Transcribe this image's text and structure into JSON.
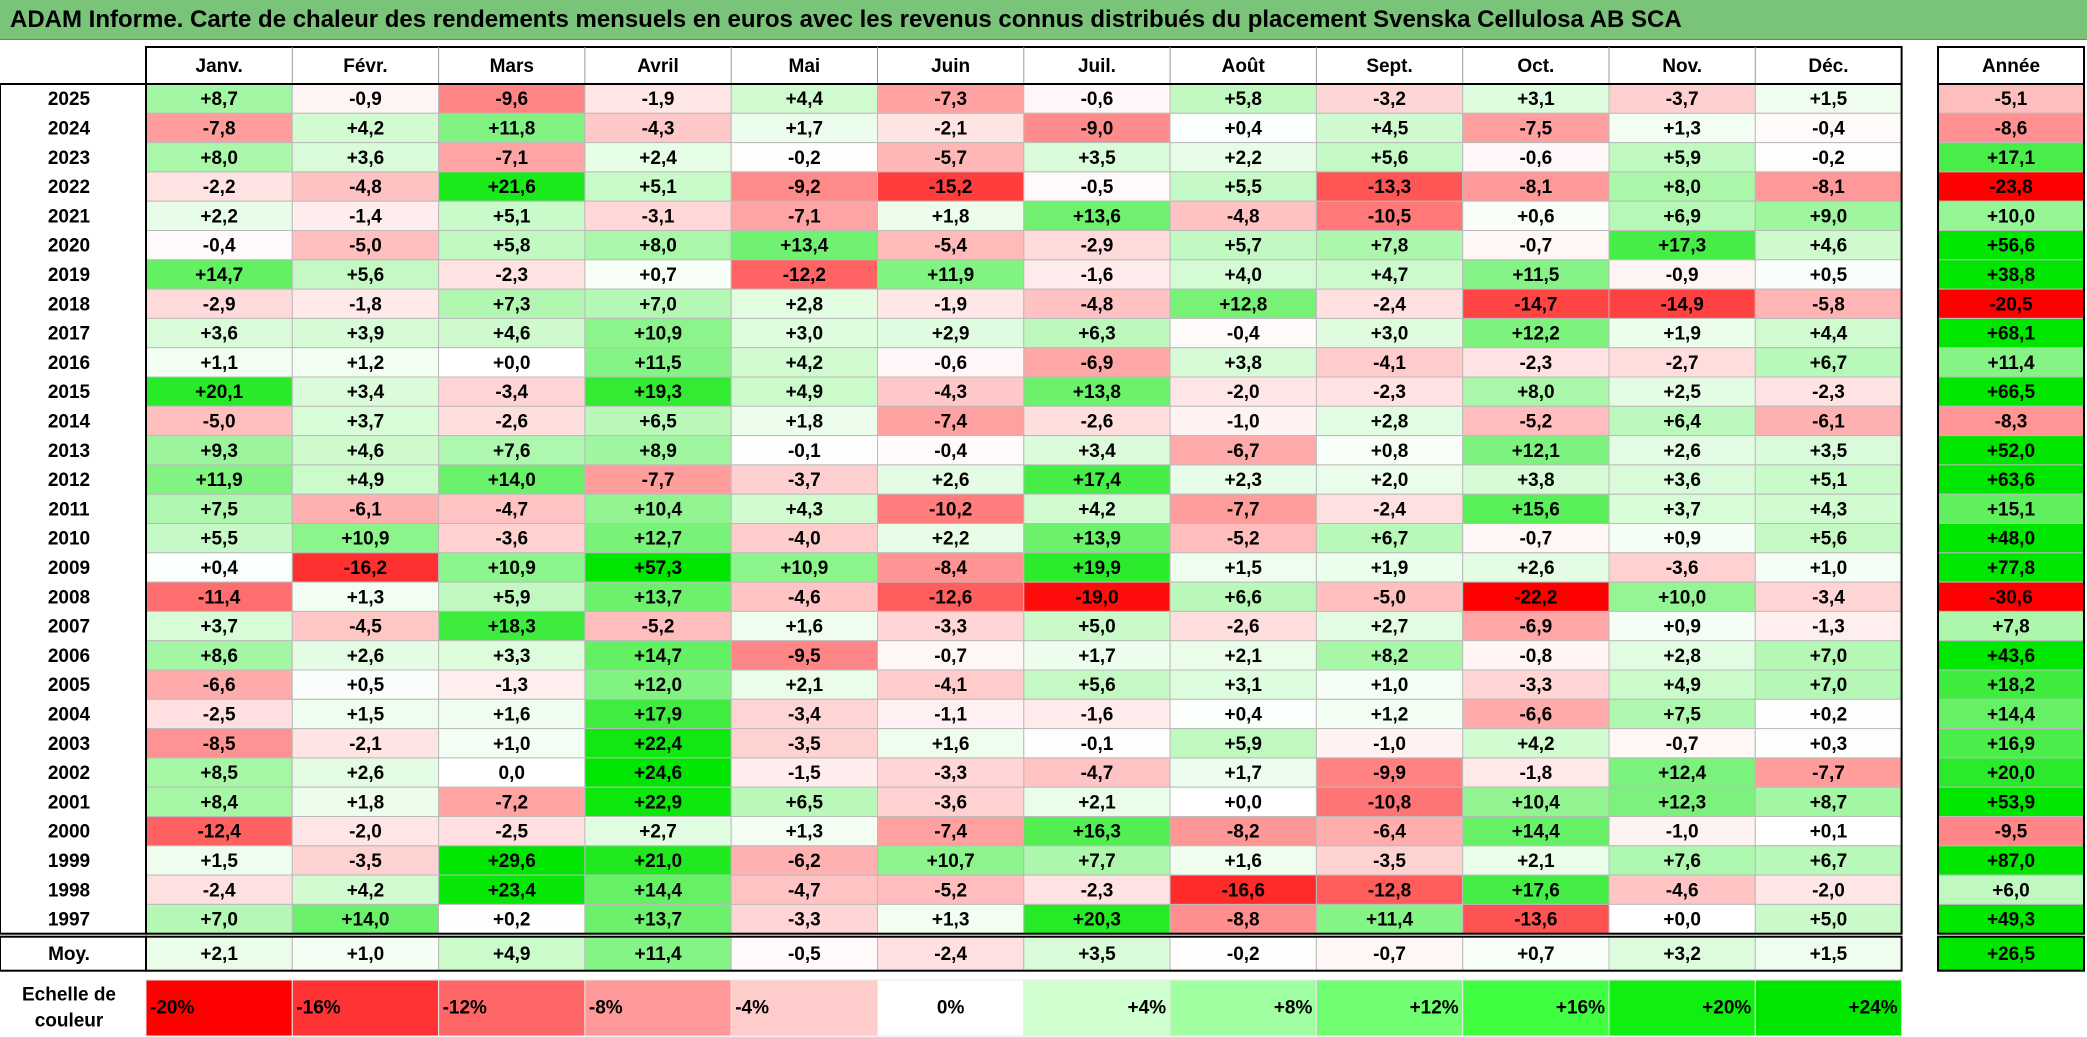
{
  "title": "ADAM Informe. Carte de chaleur des rendements mensuels en euros avec les revenus connus distribués du placement Svenska Cellulosa AB SCA",
  "chart_data": {
    "type": "heatmap",
    "title": "ADAM Informe. Carte de chaleur des rendements mensuels en euros avec les revenus connus distribués du placement Svenska Cellulosa AB SCA",
    "columns": [
      "Janv.",
      "Févr.",
      "Mars",
      "Avril",
      "Mai",
      "Juin",
      "Juil.",
      "Août",
      "Sept.",
      "Oct.",
      "Nov.",
      "Déc."
    ],
    "year_column_label": "Année",
    "rows": [
      {
        "year": "2025",
        "values": [
          "+8,7",
          "-0,9",
          "-9,6",
          "-1,9",
          "+4,4",
          "-7,3",
          "-0,6",
          "+5,8",
          "-3,2",
          "+3,1",
          "-3,7",
          "+1,5"
        ],
        "annual": "-5,1"
      },
      {
        "year": "2024",
        "values": [
          "-7,8",
          "+4,2",
          "+11,8",
          "-4,3",
          "+1,7",
          "-2,1",
          "-9,0",
          "+0,4",
          "+4,5",
          "-7,5",
          "+1,3",
          "-0,4"
        ],
        "annual": "-8,6"
      },
      {
        "year": "2023",
        "values": [
          "+8,0",
          "+3,6",
          "-7,1",
          "+2,4",
          "-0,2",
          "-5,7",
          "+3,5",
          "+2,2",
          "+5,6",
          "-0,6",
          "+5,9",
          "-0,2"
        ],
        "annual": "+17,1"
      },
      {
        "year": "2022",
        "values": [
          "-2,2",
          "-4,8",
          "+21,6",
          "+5,1",
          "-9,2",
          "-15,2",
          "-0,5",
          "+5,5",
          "-13,3",
          "-8,1",
          "+8,0",
          "-8,1"
        ],
        "annual": "-23,8"
      },
      {
        "year": "2021",
        "values": [
          "+2,2",
          "-1,4",
          "+5,1",
          "-3,1",
          "-7,1",
          "+1,8",
          "+13,6",
          "-4,8",
          "-10,5",
          "+0,6",
          "+6,9",
          "+9,0"
        ],
        "annual": "+10,0"
      },
      {
        "year": "2020",
        "values": [
          "-0,4",
          "-5,0",
          "+5,8",
          "+8,0",
          "+13,4",
          "-5,4",
          "-2,9",
          "+5,7",
          "+7,8",
          "-0,7",
          "+17,3",
          "+4,6"
        ],
        "annual": "+56,6"
      },
      {
        "year": "2019",
        "values": [
          "+14,7",
          "+5,6",
          "-2,3",
          "+0,7",
          "-12,2",
          "+11,9",
          "-1,6",
          "+4,0",
          "+4,7",
          "+11,5",
          "-0,9",
          "+0,5"
        ],
        "annual": "+38,8"
      },
      {
        "year": "2018",
        "values": [
          "-2,9",
          "-1,8",
          "+7,3",
          "+7,0",
          "+2,8",
          "-1,9",
          "-4,8",
          "+12,8",
          "-2,4",
          "-14,7",
          "-14,9",
          "-5,8"
        ],
        "annual": "-20,5"
      },
      {
        "year": "2017",
        "values": [
          "+3,6",
          "+3,9",
          "+4,6",
          "+10,9",
          "+3,0",
          "+2,9",
          "+6,3",
          "-0,4",
          "+3,0",
          "+12,2",
          "+1,9",
          "+4,4"
        ],
        "annual": "+68,1"
      },
      {
        "year": "2016",
        "values": [
          "+1,1",
          "+1,2",
          "+0,0",
          "+11,5",
          "+4,2",
          "-0,6",
          "-6,9",
          "+3,8",
          "-4,1",
          "-2,3",
          "-2,7",
          "+6,7"
        ],
        "annual": "+11,4"
      },
      {
        "year": "2015",
        "values": [
          "+20,1",
          "+3,4",
          "-3,4",
          "+19,3",
          "+4,9",
          "-4,3",
          "+13,8",
          "-2,0",
          "-2,3",
          "+8,0",
          "+2,5",
          "-2,3"
        ],
        "annual": "+66,5"
      },
      {
        "year": "2014",
        "values": [
          "-5,0",
          "+3,7",
          "-2,6",
          "+6,5",
          "+1,8",
          "-7,4",
          "-2,6",
          "-1,0",
          "+2,8",
          "-5,2",
          "+6,4",
          "-6,1"
        ],
        "annual": "-8,3"
      },
      {
        "year": "2013",
        "values": [
          "+9,3",
          "+4,6",
          "+7,6",
          "+8,9",
          "-0,1",
          "-0,4",
          "+3,4",
          "-6,7",
          "+0,8",
          "+12,1",
          "+2,6",
          "+3,5"
        ],
        "annual": "+52,0"
      },
      {
        "year": "2012",
        "values": [
          "+11,9",
          "+4,9",
          "+14,0",
          "-7,7",
          "-3,7",
          "+2,6",
          "+17,4",
          "+2,3",
          "+2,0",
          "+3,8",
          "+3,6",
          "+5,1"
        ],
        "annual": "+63,6"
      },
      {
        "year": "2011",
        "values": [
          "+7,5",
          "-6,1",
          "-4,7",
          "+10,4",
          "+4,3",
          "-10,2",
          "+4,2",
          "-7,7",
          "-2,4",
          "+15,6",
          "+3,7",
          "+4,3"
        ],
        "annual": "+15,1"
      },
      {
        "year": "2010",
        "values": [
          "+5,5",
          "+10,9",
          "-3,6",
          "+12,7",
          "-4,0",
          "+2,2",
          "+13,9",
          "-5,2",
          "+6,7",
          "-0,7",
          "+0,9",
          "+5,6"
        ],
        "annual": "+48,0"
      },
      {
        "year": "2009",
        "values": [
          "+0,4",
          "-16,2",
          "+10,9",
          "+57,3",
          "+10,9",
          "-8,4",
          "+19,9",
          "+1,5",
          "+1,9",
          "+2,6",
          "-3,6",
          "+1,0"
        ],
        "annual": "+77,8"
      },
      {
        "year": "2008",
        "values": [
          "-11,4",
          "+1,3",
          "+5,9",
          "+13,7",
          "-4,6",
          "-12,6",
          "-19,0",
          "+6,6",
          "-5,0",
          "-22,2",
          "+10,0",
          "-3,4"
        ],
        "annual": "-30,6"
      },
      {
        "year": "2007",
        "values": [
          "+3,7",
          "-4,5",
          "+18,3",
          "-5,2",
          "+1,6",
          "-3,3",
          "+5,0",
          "-2,6",
          "+2,7",
          "-6,9",
          "+0,9",
          "-1,3"
        ],
        "annual": "+7,8"
      },
      {
        "year": "2006",
        "values": [
          "+8,6",
          "+2,6",
          "+3,3",
          "+14,7",
          "-9,5",
          "-0,7",
          "+1,7",
          "+2,1",
          "+8,2",
          "-0,8",
          "+2,8",
          "+7,0"
        ],
        "annual": "+43,6"
      },
      {
        "year": "2005",
        "values": [
          "-6,6",
          "+0,5",
          "-1,3",
          "+12,0",
          "+2,1",
          "-4,1",
          "+5,6",
          "+3,1",
          "+1,0",
          "-3,3",
          "+4,9",
          "+7,0"
        ],
        "annual": "+18,2"
      },
      {
        "year": "2004",
        "values": [
          "-2,5",
          "+1,5",
          "+1,6",
          "+17,9",
          "-3,4",
          "-1,1",
          "-1,6",
          "+0,4",
          "+1,2",
          "-6,6",
          "+7,5",
          "+0,2"
        ],
        "annual": "+14,4"
      },
      {
        "year": "2003",
        "values": [
          "-8,5",
          "-2,1",
          "+1,0",
          "+22,4",
          "-3,5",
          "+1,6",
          "-0,1",
          "+5,9",
          "-1,0",
          "+4,2",
          "-0,7",
          "+0,3"
        ],
        "annual": "+16,9"
      },
      {
        "year": "2002",
        "values": [
          "+8,5",
          "+2,6",
          "0,0",
          "+24,6",
          "-1,5",
          "-3,3",
          "-4,7",
          "+1,7",
          "-9,9",
          "-1,8",
          "+12,4",
          "-7,7"
        ],
        "annual": "+20,0"
      },
      {
        "year": "2001",
        "values": [
          "+8,4",
          "+1,8",
          "-7,2",
          "+22,9",
          "+6,5",
          "-3,6",
          "+2,1",
          "+0,0",
          "-10,8",
          "+10,4",
          "+12,3",
          "+8,7"
        ],
        "annual": "+53,9"
      },
      {
        "year": "2000",
        "values": [
          "-12,4",
          "-2,0",
          "-2,5",
          "+2,7",
          "+1,3",
          "-7,4",
          "+16,3",
          "-8,2",
          "-6,4",
          "+14,4",
          "-1,0",
          "+0,1"
        ],
        "annual": "-9,5"
      },
      {
        "year": "1999",
        "values": [
          "+1,5",
          "-3,5",
          "+29,6",
          "+21,0",
          "-6,2",
          "+10,7",
          "+7,7",
          "+1,6",
          "-3,5",
          "+2,1",
          "+7,6",
          "+6,7"
        ],
        "annual": "+87,0"
      },
      {
        "year": "1998",
        "values": [
          "-2,4",
          "+4,2",
          "+23,4",
          "+14,4",
          "-4,7",
          "-5,2",
          "-2,3",
          "-16,6",
          "-12,8",
          "+17,6",
          "-4,6",
          "-2,0"
        ],
        "annual": "+6,0"
      },
      {
        "year": "1997",
        "values": [
          "+7,0",
          "+14,0",
          "+0,2",
          "+13,7",
          "-3,3",
          "+1,3",
          "+20,3",
          "-8,8",
          "+11,4",
          "-13,6",
          "+0,0",
          "+5,0"
        ],
        "annual": "+49,3"
      }
    ],
    "average_row": {
      "label": "Moy.",
      "values": [
        "+2,1",
        "+1,0",
        "+4,9",
        "+11,4",
        "-0,5",
        "-2,4",
        "+3,5",
        "-0,2",
        "-0,7",
        "+0,7",
        "+3,2",
        "+1,5"
      ],
      "annual": "+26,5"
    },
    "color_scale": {
      "label_line1": "Echelle de",
      "label_line2": "couleur",
      "steps": [
        {
          "label": "-20%",
          "value": -20,
          "color": "#ff0000"
        },
        {
          "label": "-16%",
          "value": -16,
          "color": "#ff3333"
        },
        {
          "label": "-12%",
          "value": -12,
          "color": "#ff6666"
        },
        {
          "label": "-8%",
          "value": -8,
          "color": "#ff9999"
        },
        {
          "label": "-4%",
          "value": -4,
          "color": "#ffcccc"
        },
        {
          "label": "0%",
          "value": 0,
          "color": "#ffffff"
        },
        {
          "label": "+4%",
          "value": 4,
          "color": "#d0ffd0"
        },
        {
          "label": "+8%",
          "value": 8,
          "color": "#a0ffa0"
        },
        {
          "label": "+12%",
          "value": 12,
          "color": "#70ff70"
        },
        {
          "label": "+16%",
          "value": 16,
          "color": "#40ff40"
        },
        {
          "label": "+20%",
          "value": 20,
          "color": "#10f010"
        },
        {
          "label": "+24%",
          "value": 24,
          "color": "#00e600"
        }
      ],
      "negative_color": "#ff0000",
      "zero_color": "#ffffff",
      "positive_color": "#00e600",
      "negative_limit": -20,
      "positive_limit": 24
    },
    "title_bar_color": "#7ac47a"
  }
}
